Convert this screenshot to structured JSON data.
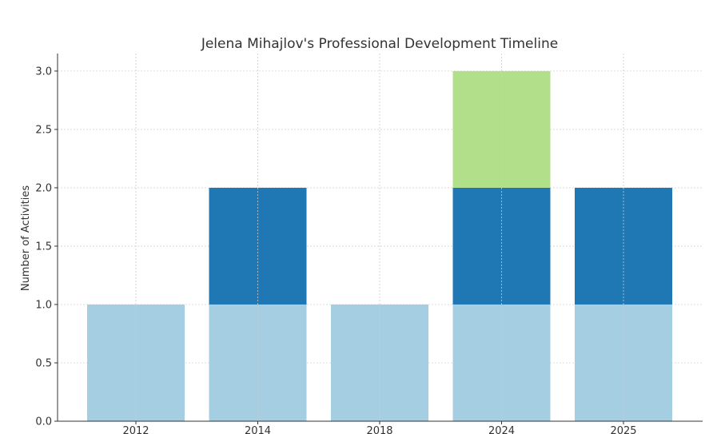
{
  "chart_data": {
    "type": "bar",
    "stacked": true,
    "title": "Jelena Mihajlov's Professional Development Timeline",
    "xlabel": "",
    "ylabel": "Number of Activities",
    "categories": [
      "2012",
      "2014",
      "2018",
      "2024",
      "2025"
    ],
    "series": [
      {
        "values": [
          1,
          1,
          1,
          1,
          1
        ],
        "color": "#a6cee3"
      },
      {
        "values": [
          0,
          1,
          0,
          1,
          1
        ],
        "color": "#1f78b4"
      },
      {
        "values": [
          0,
          0,
          0,
          1,
          0
        ],
        "color": "#b2df8a"
      }
    ],
    "ylim": [
      0,
      3.15
    ],
    "yticks": [
      "0.0",
      "0.5",
      "1.0",
      "1.5",
      "2.0",
      "2.5",
      "3.0"
    ],
    "grid": true,
    "legend": "none"
  }
}
